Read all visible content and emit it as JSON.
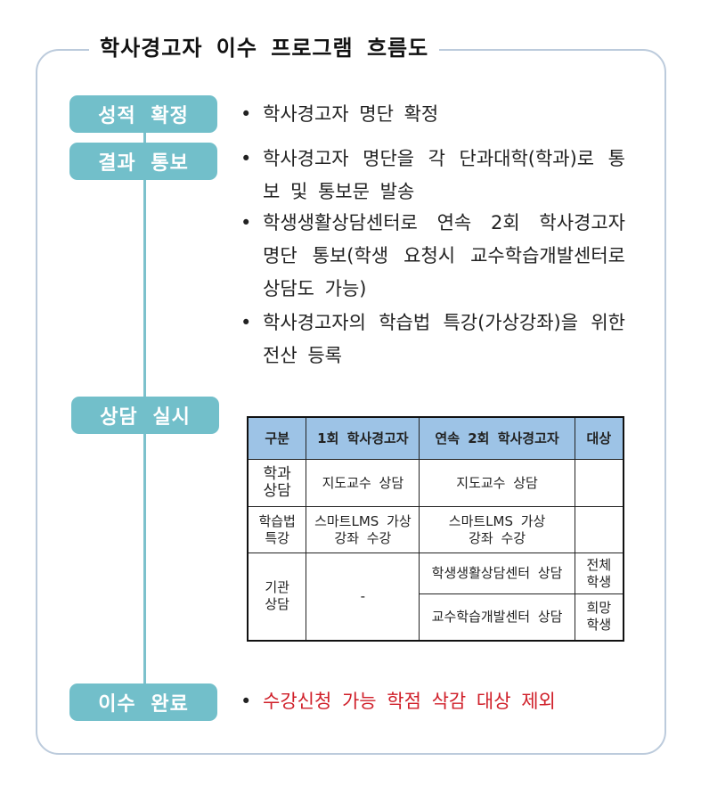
{
  "title": "학사경고자 이수 프로그램 흐름도",
  "colors": {
    "step_fill": "#72bfca",
    "table_header": "#9dc3e6",
    "frame": "#bccbdc",
    "highlight": "#d0202a"
  },
  "steps": [
    {
      "label": "성적 확정",
      "bullets": [
        "학사경고자 명단 확정"
      ]
    },
    {
      "label": "결과 통보",
      "bullets": [
        "학사경고자 명단을 각 단과대학(학과)로 통보 및 통보문 발송",
        "학생생활상담센터로 연속 2회 학사경고자 명단 통보(학생 요청시 교수학습개발센터로 상담도 가능)",
        "학사경고자의 학습법 특강(가상강좌)을 위한 전산 등록"
      ]
    },
    {
      "label": "상담 실시"
    },
    {
      "label": "이수 완료",
      "bullets": [
        "수강신청 가능 학점 삭감 대상 제외"
      ]
    }
  ],
  "bullet_glyph": "•",
  "table": {
    "headers": [
      "구분",
      "1회 학사경고자",
      "연속 2회 학사경고자",
      "대상"
    ],
    "rows": [
      [
        "학과 상담",
        "지도교수 상담",
        "지도교수 상담",
        ""
      ],
      [
        "학습법 특강",
        "스마트LMS 가상강좌 수강",
        "스마트LMS 가상강좌 수강",
        ""
      ],
      [
        "기관 상담",
        "-",
        "학생생활상담센터 상담",
        "전체 학생"
      ],
      [
        "",
        "",
        "교수학습개발센터 상담",
        "희망 학생"
      ]
    ]
  }
}
